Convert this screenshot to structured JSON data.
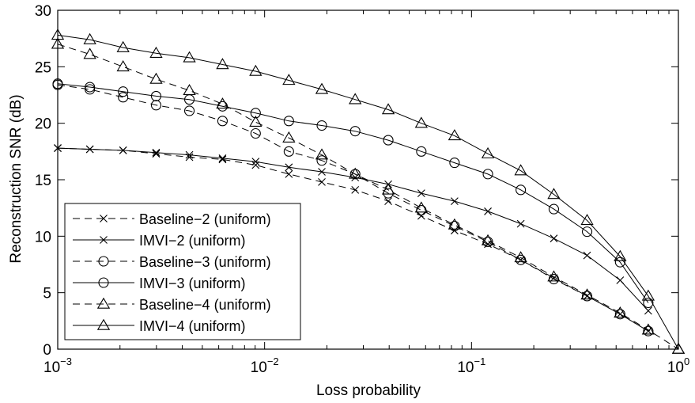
{
  "chart_data": {
    "type": "line",
    "xlabel": "Loss probability",
    "ylabel": "Reconstruction SNR (dB)",
    "xscale": "log",
    "xlim": [
      0.001,
      1
    ],
    "ylim": [
      0,
      30
    ],
    "yticks": [
      0,
      5,
      10,
      15,
      20,
      25,
      30
    ],
    "xticks": [
      {
        "value": 0.001,
        "base": "10",
        "exp": "−3"
      },
      {
        "value": 0.01,
        "base": "10",
        "exp": "−2"
      },
      {
        "value": 0.1,
        "base": "10",
        "exp": "−1"
      },
      {
        "value": 1,
        "base": "10",
        "exp": "0"
      }
    ],
    "grid": false,
    "legend_position": "bottom-left",
    "series": [
      {
        "name": "Baseline−2 (uniform)",
        "marker": "x",
        "line": "dashed",
        "x": [
          0.001,
          0.00143,
          0.00207,
          0.00299,
          0.00433,
          0.00626,
          0.00905,
          0.0131,
          0.0189,
          0.0274,
          0.0396,
          0.0572,
          0.0828,
          0.12,
          0.173,
          0.25,
          0.362,
          0.523,
          0.715
        ],
        "y": [
          17.8,
          17.7,
          17.6,
          17.3,
          17.0,
          16.8,
          16.3,
          15.5,
          14.8,
          14.1,
          13.1,
          11.8,
          10.5,
          9.3,
          7.9,
          6.3,
          4.7,
          3.1,
          1.6
        ]
      },
      {
        "name": "IMVI−2 (uniform)",
        "marker": "x",
        "line": "solid",
        "x": [
          0.001,
          0.00143,
          0.00207,
          0.00299,
          0.00433,
          0.00626,
          0.00905,
          0.0131,
          0.0189,
          0.0274,
          0.0396,
          0.0572,
          0.0828,
          0.12,
          0.173,
          0.25,
          0.362,
          0.523,
          0.715
        ],
        "y": [
          17.8,
          17.7,
          17.6,
          17.4,
          17.2,
          16.9,
          16.6,
          16.1,
          15.7,
          15.2,
          14.6,
          13.8,
          13.1,
          12.2,
          11.1,
          9.8,
          8.3,
          6.1,
          3.4
        ]
      },
      {
        "name": "Baseline−3 (uniform)",
        "marker": "circle",
        "line": "dashed",
        "x": [
          0.001,
          0.00143,
          0.00207,
          0.00299,
          0.00433,
          0.00626,
          0.00905,
          0.0131,
          0.0189,
          0.0274,
          0.0396,
          0.0572,
          0.0828,
          0.12,
          0.173,
          0.25,
          0.362,
          0.523,
          0.715
        ],
        "y": [
          23.4,
          23.0,
          22.3,
          21.6,
          21.1,
          20.2,
          19.1,
          17.5,
          16.7,
          15.5,
          13.8,
          12.3,
          10.9,
          9.5,
          7.9,
          6.2,
          4.7,
          3.1,
          1.6
        ]
      },
      {
        "name": "IMVI−3 (uniform)",
        "marker": "circle",
        "line": "solid",
        "x": [
          0.001,
          0.00143,
          0.00207,
          0.00299,
          0.00433,
          0.00626,
          0.00905,
          0.0131,
          0.0189,
          0.0274,
          0.0396,
          0.0572,
          0.0828,
          0.12,
          0.173,
          0.25,
          0.362,
          0.523,
          0.715
        ],
        "y": [
          23.5,
          23.2,
          22.8,
          22.4,
          22.1,
          21.5,
          20.9,
          20.2,
          19.8,
          19.3,
          18.5,
          17.5,
          16.5,
          15.5,
          14.1,
          12.4,
          10.4,
          7.7,
          4.1
        ]
      },
      {
        "name": "Baseline−4 (uniform)",
        "marker": "triangle",
        "line": "dashed",
        "x": [
          0.001,
          0.00143,
          0.00207,
          0.00299,
          0.00433,
          0.00626,
          0.00905,
          0.0131,
          0.0189,
          0.0274,
          0.0396,
          0.0572,
          0.0828,
          0.12,
          0.173,
          0.25,
          0.362,
          0.523,
          0.715,
          1
        ],
        "y": [
          27.0,
          26.1,
          25.0,
          23.9,
          22.9,
          21.7,
          20.1,
          18.7,
          17.2,
          15.5,
          14.1,
          12.5,
          11.0,
          9.6,
          8.1,
          6.4,
          4.8,
          3.2,
          1.7,
          0
        ]
      },
      {
        "name": "IMVI−4 (uniform)",
        "marker": "triangle",
        "line": "solid",
        "x": [
          0.001,
          0.00143,
          0.00207,
          0.00299,
          0.00433,
          0.00626,
          0.00905,
          0.0131,
          0.0189,
          0.0274,
          0.0396,
          0.0572,
          0.0828,
          0.12,
          0.173,
          0.25,
          0.362,
          0.523,
          0.715,
          1
        ],
        "y": [
          27.8,
          27.4,
          26.7,
          26.2,
          25.8,
          25.2,
          24.6,
          23.8,
          23.0,
          22.1,
          21.2,
          20.0,
          18.9,
          17.3,
          15.8,
          13.7,
          11.4,
          8.2,
          4.7,
          0
        ]
      }
    ]
  }
}
